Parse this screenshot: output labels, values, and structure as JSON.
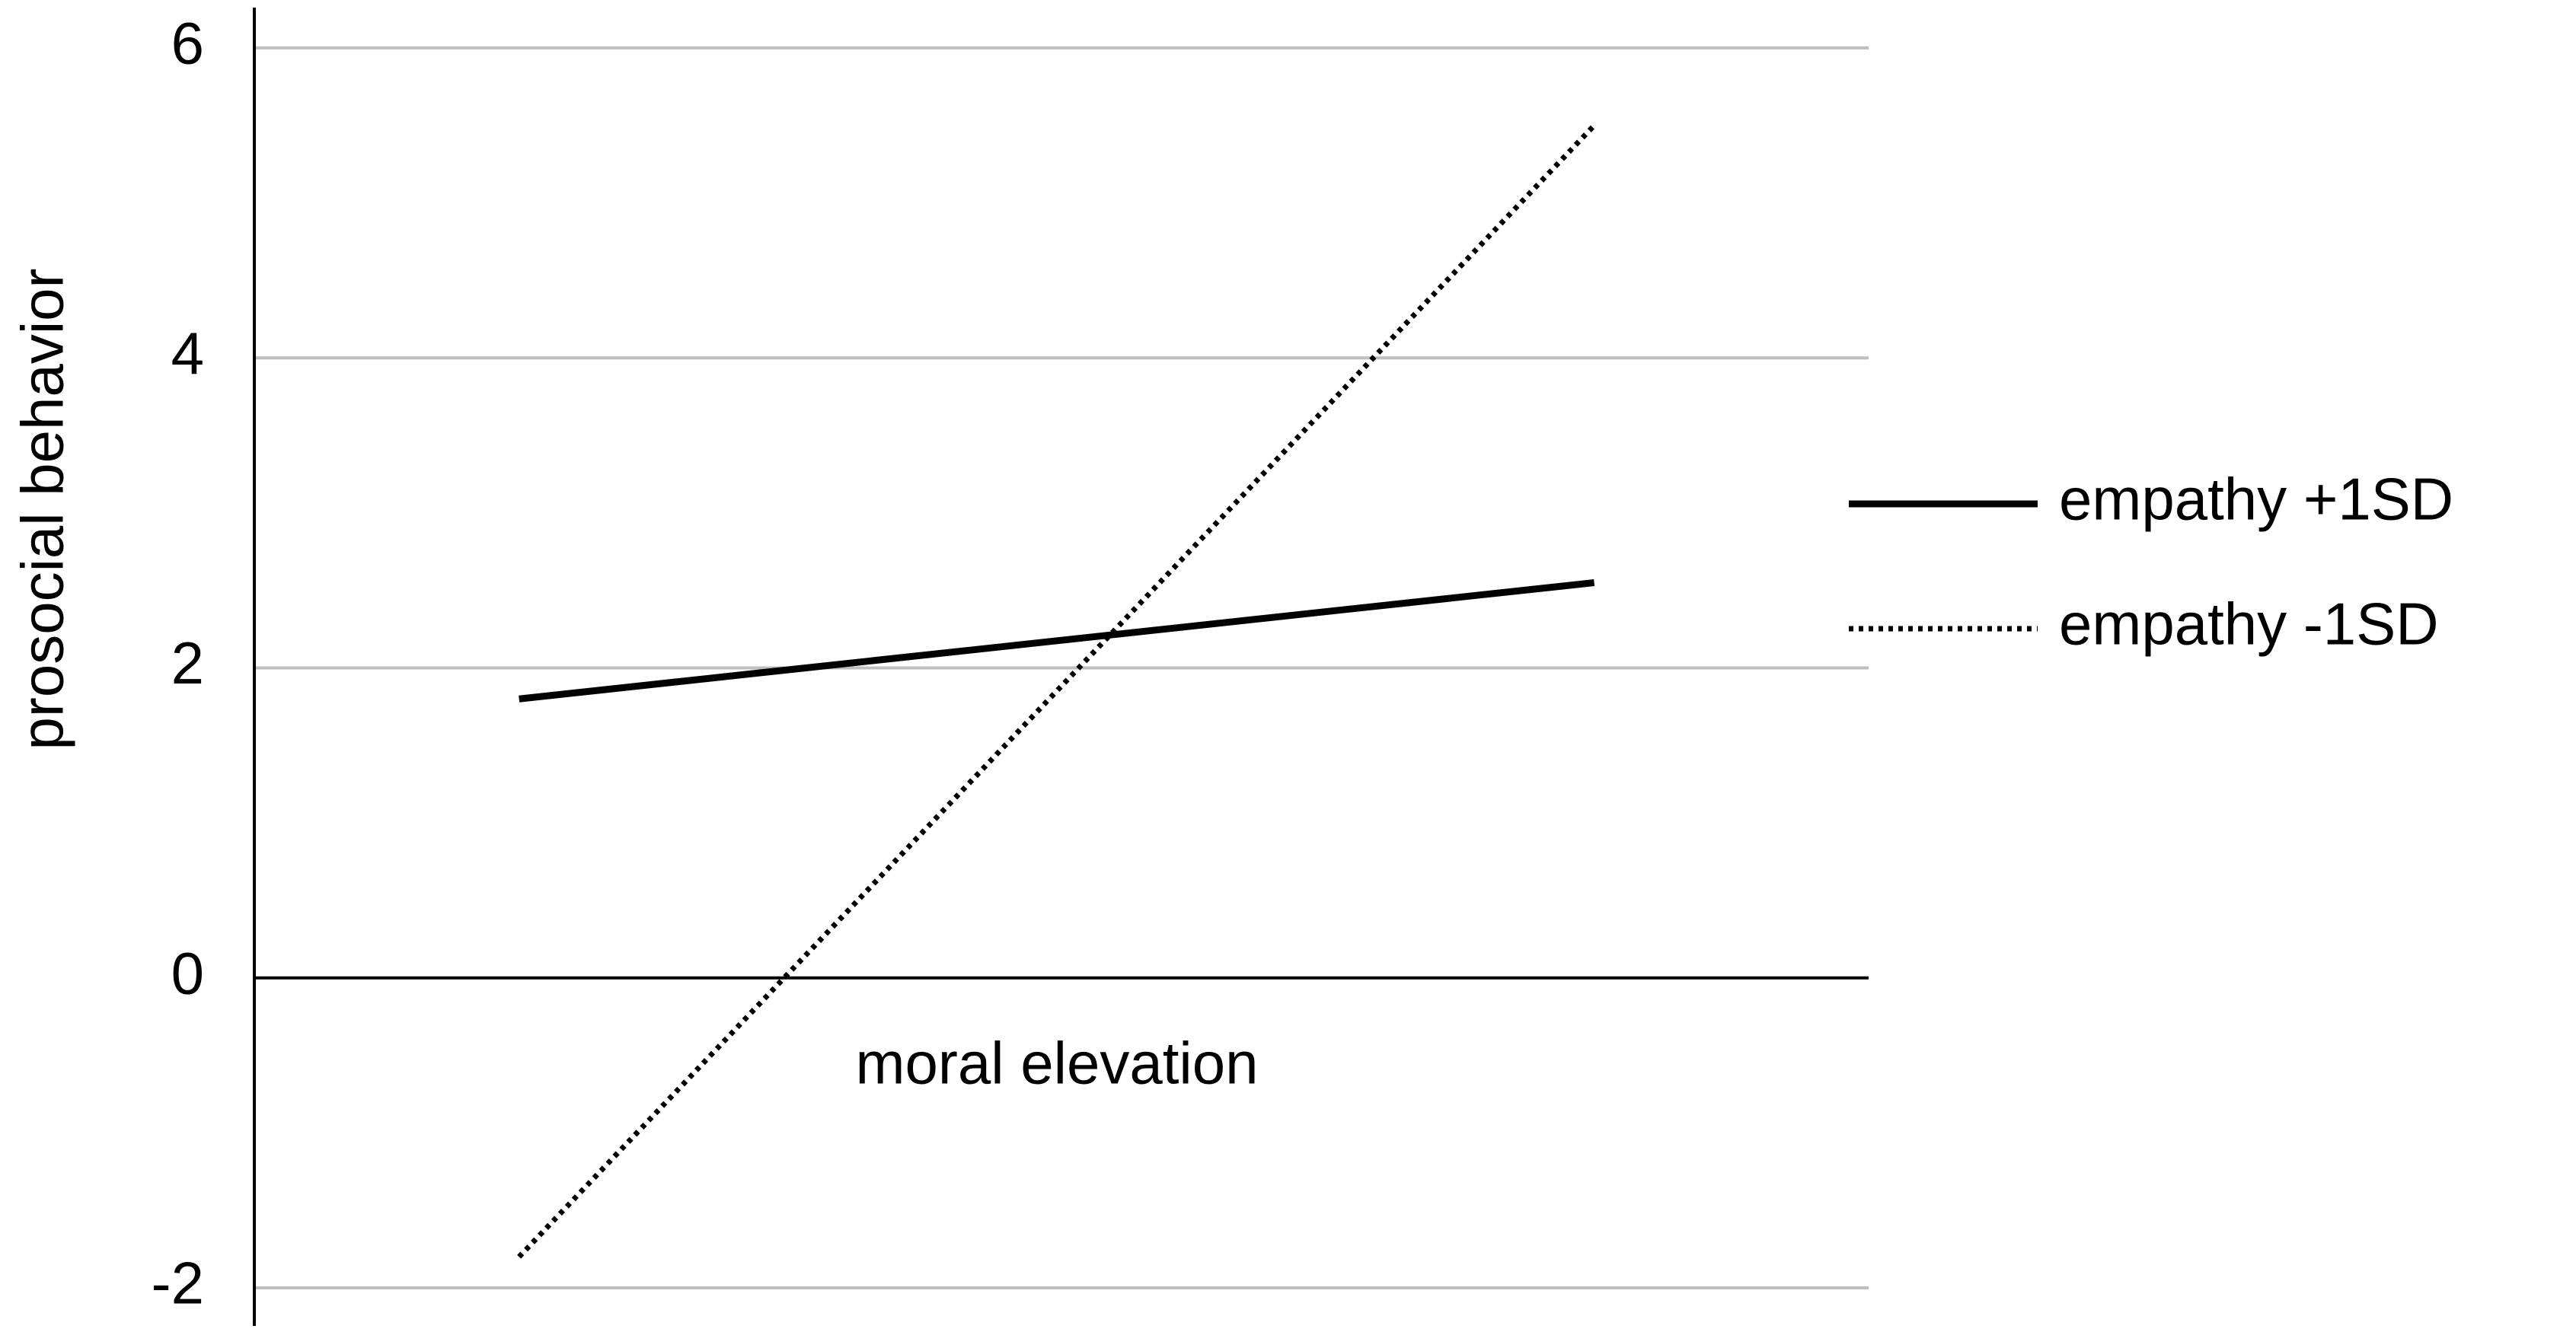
{
  "chart_data": {
    "type": "line",
    "x_label": "moral elevation",
    "y_label": "prosocial behavior",
    "categories": [
      null,
      null
    ],
    "series": [
      {
        "name": "empathy +1SD",
        "color": "#000000",
        "dash": "solid",
        "values": [
          1.8,
          2.55
        ]
      },
      {
        "name": "empathy -1SD",
        "color": "#000000",
        "dash": "dotted",
        "values": [
          -1.8,
          5.5
        ]
      }
    ],
    "ylim": [
      -2,
      6
    ],
    "yticks": [
      -2,
      0,
      2,
      4,
      6
    ],
    "grid": true,
    "legend": "right"
  }
}
